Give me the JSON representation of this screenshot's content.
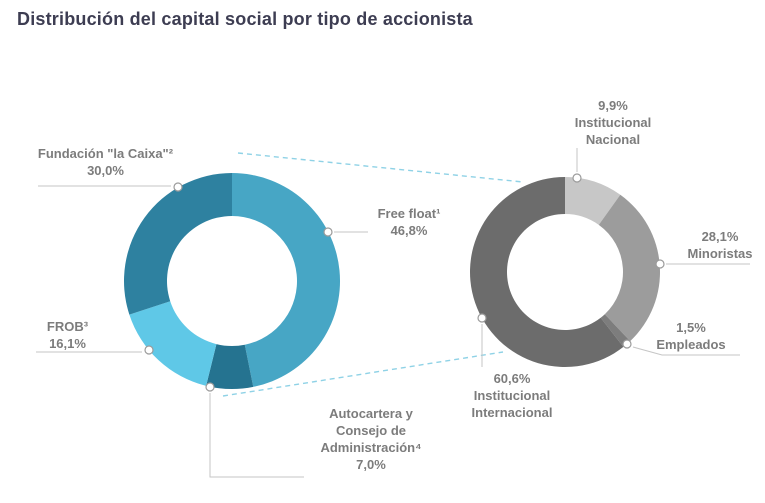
{
  "page": {
    "title": "Distribución del capital social por tipo de accionista"
  },
  "style": {
    "title_color": "#3d3d52",
    "label_color": "#7c7c7c",
    "leader_line_color": "#c6c6c6",
    "connector_dash_color": "#8fd2e6"
  },
  "chart_data": [
    {
      "type": "pie",
      "subtype": "donut",
      "title": "Distribución del capital social por tipo de accionista",
      "legend_position": "callouts",
      "start_angle_deg": 0,
      "direction": "clockwise",
      "segments": [
        {
          "label": "Free float¹",
          "value": 46.8,
          "value_label": "46,8%",
          "color": "#47a6c5"
        },
        {
          "label": "Autocartera y Consejo de Administración⁴",
          "value": 7.0,
          "value_label": "7,0%",
          "color": "#257390"
        },
        {
          "label": "FROB³",
          "value": 16.1,
          "value_label": "16,1%",
          "color": "#5fc8e7"
        },
        {
          "label": "Fundación \"la Caixa\"²",
          "value": 30.0,
          "value_label": "30,0%",
          "color": "#2e81a0"
        }
      ]
    },
    {
      "type": "pie",
      "subtype": "donut",
      "legend_position": "callouts",
      "start_angle_deg": 0,
      "direction": "clockwise",
      "segments": [
        {
          "label": "Institucional Nacional",
          "value": 9.9,
          "value_label": "9,9%",
          "color": "#c7c7c7"
        },
        {
          "label": "Minoristas",
          "value": 28.1,
          "value_label": "28,1%",
          "color": "#9c9c9c"
        },
        {
          "label": "Empleados",
          "value": 1.5,
          "value_label": "1,5%",
          "color": "#7d7d7d"
        },
        {
          "label": "Institucional Internacional",
          "value": 60.6,
          "value_label": "60,6%",
          "color": "#6c6c6c"
        }
      ]
    }
  ]
}
